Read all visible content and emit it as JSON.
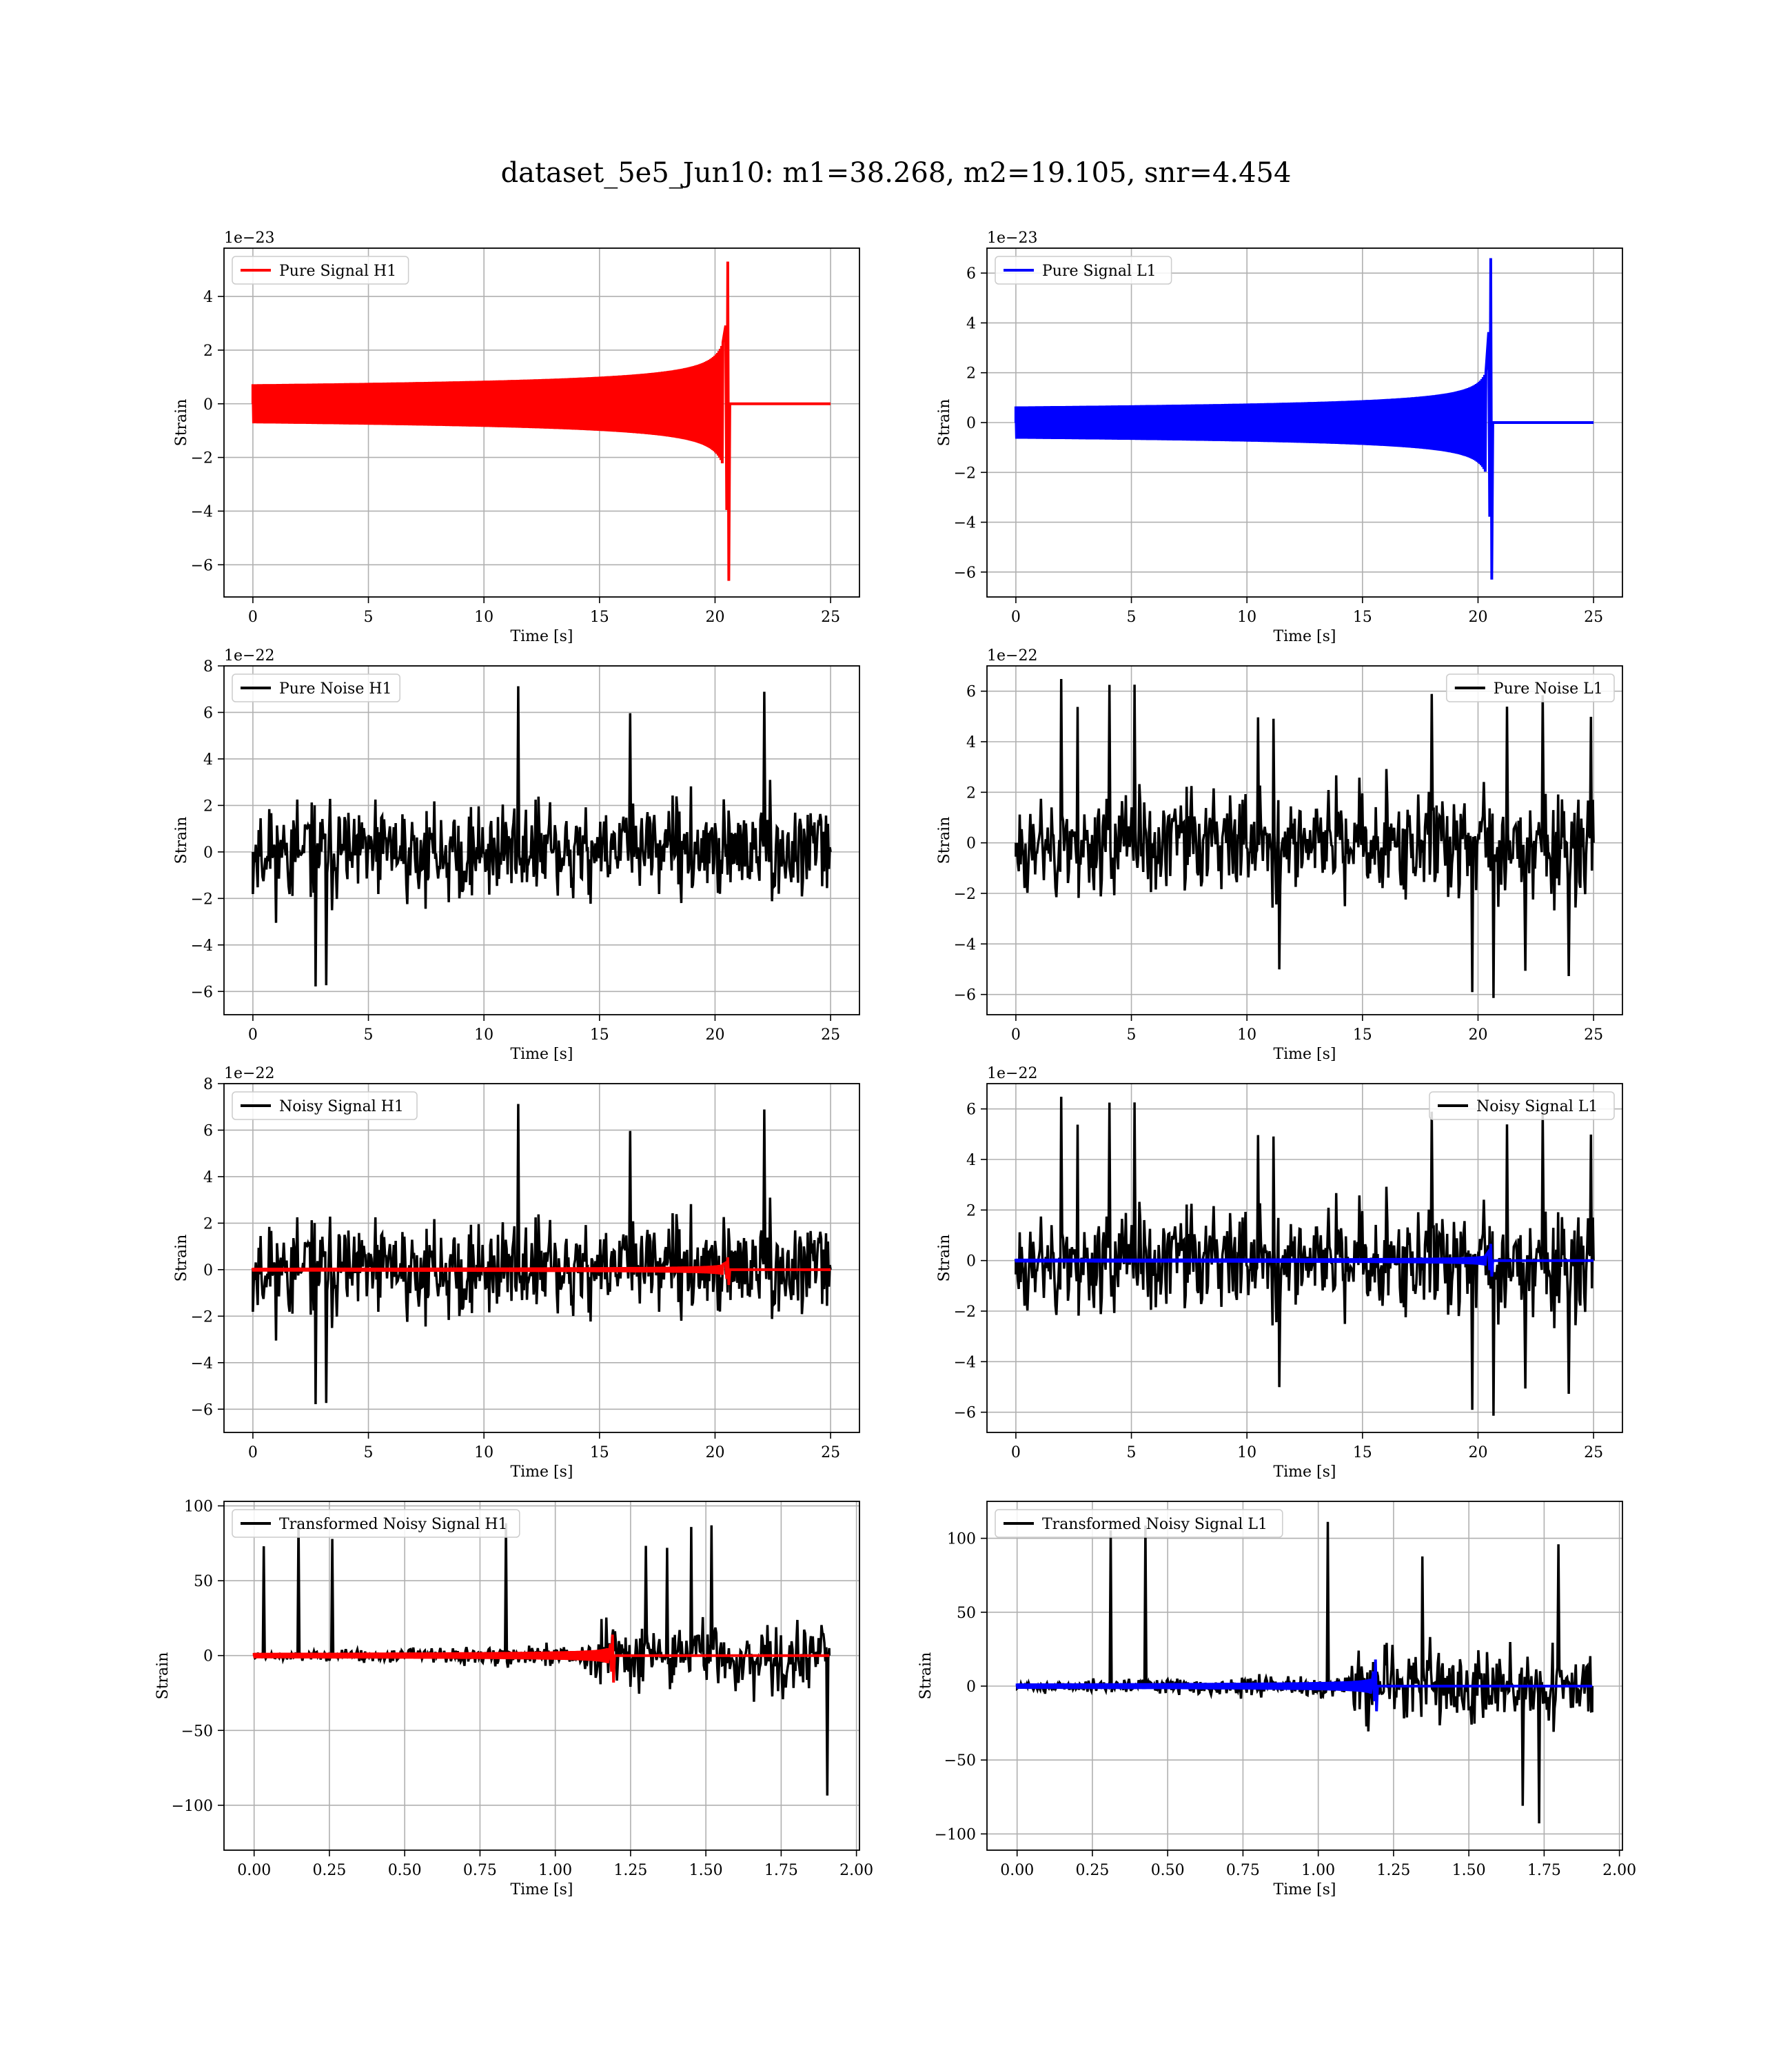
{
  "figure": {
    "title": "dataset_5e5_Jun10: m1=38.268, m2=19.105, snr=4.454"
  },
  "colors": {
    "h1_signal": "#ff0000",
    "l1_signal": "#0000ff",
    "noise": "#000000",
    "grid": "#b0b0b0"
  },
  "chart_data": [
    {
      "type": "line",
      "panel": "pure-signal-h1",
      "xlabel": "Time [s]",
      "ylabel": "Strain",
      "offset_text": "1e−23",
      "xlim": [
        -1.25,
        26.25
      ],
      "ylim": [
        -7.2,
        5.8
      ],
      "xticks": [
        0,
        5,
        10,
        15,
        20,
        25
      ],
      "yticks": [
        -6,
        -4,
        -2,
        0,
        2,
        4
      ],
      "x_tick_labels": [
        "0",
        "5",
        "10",
        "15",
        "20",
        "25"
      ],
      "y_tick_labels": [
        "−6",
        "−4",
        "−2",
        "0",
        "2",
        "4"
      ],
      "legend": {
        "placement": "upper-left",
        "entries": [
          {
            "label": "Pure Signal H1",
            "color": "#ff0000"
          }
        ]
      },
      "series": [
        {
          "name": "Pure Signal H1",
          "kind": "chirp",
          "color": "#ff0000",
          "t_start": 0,
          "t_end": 25,
          "t_merger": 20.55,
          "peak_pos": 5.3,
          "peak_neg": -6.6,
          "envelope_at_20": 1.8
        }
      ]
    },
    {
      "type": "line",
      "panel": "pure-signal-l1",
      "xlabel": "Time [s]",
      "ylabel": "Strain",
      "offset_text": "1e−23",
      "xlim": [
        -1.25,
        26.25
      ],
      "ylim": [
        -7.0,
        7.0
      ],
      "xticks": [
        0,
        5,
        10,
        15,
        20,
        25
      ],
      "yticks": [
        -6,
        -4,
        -2,
        0,
        2,
        4,
        6
      ],
      "x_tick_labels": [
        "0",
        "5",
        "10",
        "15",
        "20",
        "25"
      ],
      "y_tick_labels": [
        "−6",
        "−4",
        "−2",
        "0",
        "2",
        "4",
        "6"
      ],
      "legend": {
        "placement": "upper-left",
        "entries": [
          {
            "label": "Pure Signal L1",
            "color": "#0000ff"
          }
        ]
      },
      "series": [
        {
          "name": "Pure Signal L1",
          "kind": "chirp",
          "color": "#0000ff",
          "t_start": 0,
          "t_end": 25,
          "t_merger": 20.55,
          "peak_pos": 6.6,
          "peak_neg": -6.3,
          "envelope_at_20": 1.6
        }
      ]
    },
    {
      "type": "line",
      "panel": "pure-noise-h1",
      "xlabel": "Time [s]",
      "ylabel": "Strain",
      "offset_text": "1e−22",
      "xlim": [
        -1.25,
        26.25
      ],
      "ylim": [
        -7.0,
        8.0
      ],
      "xticks": [
        0,
        5,
        10,
        15,
        20,
        25
      ],
      "yticks": [
        -6,
        -4,
        -2,
        0,
        2,
        4,
        6,
        8
      ],
      "x_tick_labels": [
        "0",
        "5",
        "10",
        "15",
        "20",
        "25"
      ],
      "y_tick_labels": [
        "−6",
        "−4",
        "−2",
        "0",
        "2",
        "4",
        "6",
        "8"
      ],
      "legend": {
        "placement": "upper-left",
        "entries": [
          {
            "label": "Pure Noise H1",
            "color": "#000000"
          }
        ]
      },
      "series": [
        {
          "name": "Pure Noise H1",
          "kind": "noise",
          "color": "#000000",
          "t_start": 0,
          "t_end": 25,
          "band": 3.6,
          "max": 7.4,
          "min": -6.4,
          "seed": 11
        }
      ]
    },
    {
      "type": "line",
      "panel": "pure-noise-l1",
      "xlabel": "Time [s]",
      "ylabel": "Strain",
      "offset_text": "1e−22",
      "xlim": [
        -1.25,
        26.25
      ],
      "ylim": [
        -6.8,
        7.0
      ],
      "xticks": [
        0,
        5,
        10,
        15,
        20,
        25
      ],
      "yticks": [
        -6,
        -4,
        -2,
        0,
        2,
        4,
        6
      ],
      "x_tick_labels": [
        "0",
        "5",
        "10",
        "15",
        "20",
        "25"
      ],
      "y_tick_labels": [
        "−6",
        "−4",
        "−2",
        "0",
        "2",
        "4",
        "6"
      ],
      "legend": {
        "placement": "upper-right",
        "entries": [
          {
            "label": "Pure Noise L1",
            "color": "#000000"
          }
        ]
      },
      "series": [
        {
          "name": "Pure Noise L1",
          "kind": "noise",
          "color": "#000000",
          "t_start": 0,
          "t_end": 25,
          "band": 3.8,
          "max": 6.5,
          "min": -6.2,
          "seed": 23
        }
      ]
    },
    {
      "type": "line",
      "panel": "noisy-signal-h1",
      "xlabel": "Time [s]",
      "ylabel": "Strain",
      "offset_text": "1e−22",
      "xlim": [
        -1.25,
        26.25
      ],
      "ylim": [
        -7.0,
        8.0
      ],
      "xticks": [
        0,
        5,
        10,
        15,
        20,
        25
      ],
      "yticks": [
        -6,
        -4,
        -2,
        0,
        2,
        4,
        6,
        8
      ],
      "x_tick_labels": [
        "0",
        "5",
        "10",
        "15",
        "20",
        "25"
      ],
      "y_tick_labels": [
        "−6",
        "−4",
        "−2",
        "0",
        "2",
        "4",
        "6",
        "8"
      ],
      "legend": {
        "placement": "upper-left",
        "entries": [
          {
            "label": "Noisy Signal H1",
            "color": "#000000"
          }
        ]
      },
      "series": [
        {
          "name": "Noisy Signal H1",
          "kind": "noise",
          "color": "#000000",
          "t_start": 0,
          "t_end": 25,
          "band": 3.6,
          "max": 7.4,
          "min": -6.4,
          "seed": 11
        },
        {
          "name": "",
          "kind": "chirp",
          "color": "#ff0000",
          "t_start": 0,
          "t_end": 25,
          "t_merger": 20.55,
          "peak_pos": 0.53,
          "peak_neg": -0.66,
          "envelope_at_20": 0.18
        }
      ]
    },
    {
      "type": "line",
      "panel": "noisy-signal-l1",
      "xlabel": "Time [s]",
      "ylabel": "Strain",
      "offset_text": "1e−22",
      "xlim": [
        -1.25,
        26.25
      ],
      "ylim": [
        -6.8,
        7.0
      ],
      "xticks": [
        0,
        5,
        10,
        15,
        20,
        25
      ],
      "yticks": [
        -6,
        -4,
        -2,
        0,
        2,
        4,
        6
      ],
      "x_tick_labels": [
        "0",
        "5",
        "10",
        "15",
        "20",
        "25"
      ],
      "y_tick_labels": [
        "−6",
        "−4",
        "−2",
        "0",
        "2",
        "4",
        "6"
      ],
      "legend": {
        "placement": "upper-right",
        "entries": [
          {
            "label": "Noisy Signal L1",
            "color": "#000000"
          }
        ]
      },
      "series": [
        {
          "name": "Noisy Signal L1",
          "kind": "noise",
          "color": "#000000",
          "t_start": 0,
          "t_end": 25,
          "band": 3.8,
          "max": 6.5,
          "min": -6.2,
          "seed": 23
        },
        {
          "name": "",
          "kind": "chirp",
          "color": "#0000ff",
          "t_start": 0,
          "t_end": 25,
          "t_merger": 20.55,
          "peak_pos": 0.66,
          "peak_neg": -0.63,
          "envelope_at_20": 0.16
        }
      ]
    },
    {
      "type": "line",
      "panel": "transformed-noisy-signal-h1",
      "xlabel": "Time [s]",
      "ylabel": "Strain",
      "offset_text": "",
      "xlim": [
        -0.1,
        2.01
      ],
      "ylim": [
        -130,
        103
      ],
      "xticks": [
        0,
        0.25,
        0.5,
        0.75,
        1.0,
        1.25,
        1.5,
        1.75,
        2.0
      ],
      "yticks": [
        -100,
        -50,
        0,
        50,
        100
      ],
      "x_tick_labels": [
        "0.00",
        "0.25",
        "0.50",
        "0.75",
        "1.00",
        "1.25",
        "1.50",
        "1.75",
        "2.00"
      ],
      "y_tick_labels": [
        "−100",
        "−50",
        "0",
        "50",
        "100"
      ],
      "legend": {
        "placement": "upper-left",
        "entries": [
          {
            "label": "Transformed Noisy Signal H1",
            "color": "#000000"
          }
        ]
      },
      "series": [
        {
          "name": "Transformed Noisy Signal H1",
          "kind": "whitened",
          "color": "#000000",
          "t_start": 0,
          "t_end": 1.91,
          "t_jump": 1.11,
          "band_pre_start": 4,
          "band_pre_end": 15,
          "band_post": 40,
          "max": 90,
          "min": -123,
          "seed": 5
        },
        {
          "name": "",
          "kind": "chirp",
          "color": "#ff0000",
          "t_start": 0,
          "t_end": 1.91,
          "t_merger": 1.19,
          "peak_pos": 14,
          "peak_neg": -18,
          "envelope_at_20": 4
        }
      ]
    },
    {
      "type": "line",
      "panel": "transformed-noisy-signal-l1",
      "xlabel": "Time [s]",
      "ylabel": "Strain",
      "offset_text": "",
      "xlim": [
        -0.1,
        2.01
      ],
      "ylim": [
        -111,
        125
      ],
      "xticks": [
        0,
        0.25,
        0.5,
        0.75,
        1.0,
        1.25,
        1.5,
        1.75,
        2.0
      ],
      "yticks": [
        -100,
        -50,
        0,
        50,
        100
      ],
      "x_tick_labels": [
        "0.00",
        "0.25",
        "0.50",
        "0.75",
        "1.00",
        "1.25",
        "1.50",
        "1.75",
        "2.00"
      ],
      "y_tick_labels": [
        "−100",
        "−50",
        "0",
        "50",
        "100"
      ],
      "legend": {
        "placement": "upper-left",
        "entries": [
          {
            "label": "Transformed Noisy Signal L1",
            "color": "#000000"
          }
        ]
      },
      "series": [
        {
          "name": "Transformed Noisy Signal L1",
          "kind": "whitened",
          "color": "#000000",
          "t_start": 0,
          "t_end": 1.91,
          "t_jump": 1.11,
          "band_pre_start": 5,
          "band_pre_end": 15,
          "band_post": 45,
          "max": 116,
          "min": -104,
          "seed": 9
        },
        {
          "name": "",
          "kind": "chirp",
          "color": "#0000ff",
          "t_start": 0,
          "t_end": 1.91,
          "t_merger": 1.19,
          "peak_pos": 18,
          "peak_neg": -17,
          "envelope_at_20": 4
        }
      ]
    }
  ]
}
